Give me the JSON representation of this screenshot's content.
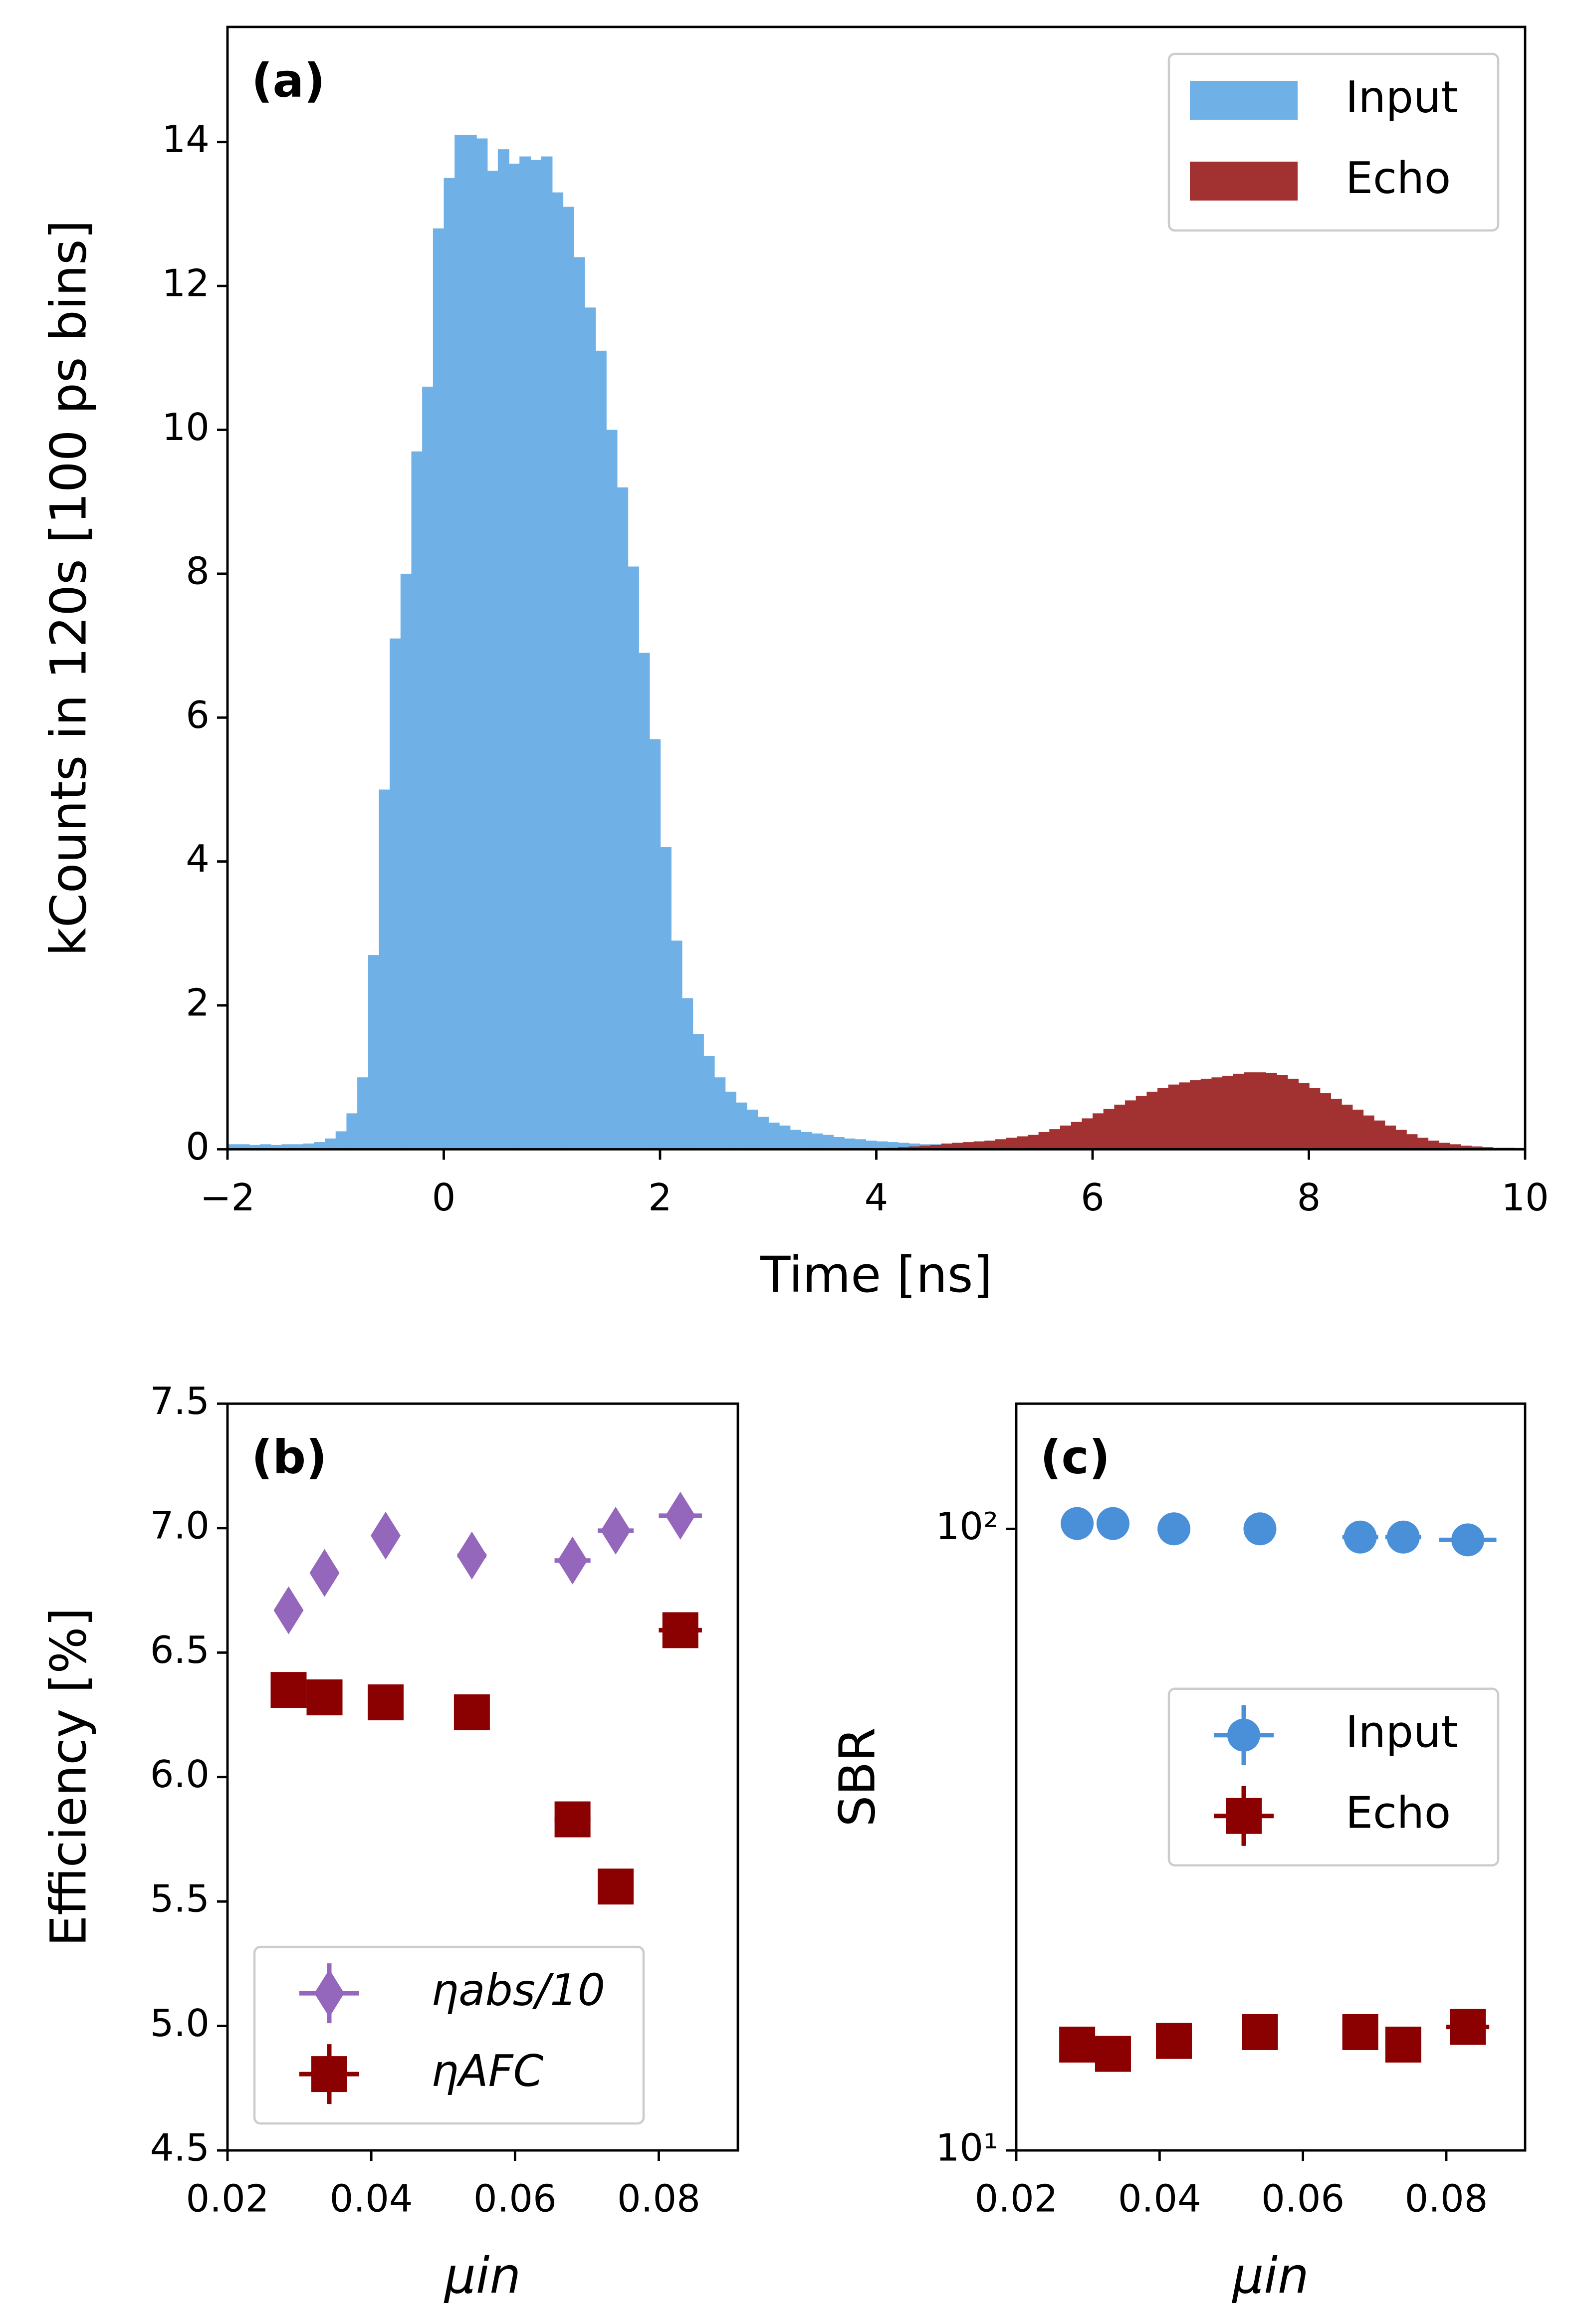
{
  "chart_data": [
    {
      "type": "histogram",
      "title": "(a)",
      "xlabel": "Time [ns]",
      "ylabel": "kCounts in 120s [100 ps bins]",
      "bins": [
        -2,
        -1.9,
        -1.8,
        -1.7,
        -1.6,
        -1.5,
        -1.4,
        -1.3,
        -1.2,
        -1.1,
        -1,
        -0.9,
        -0.8,
        -0.7,
        -0.6,
        -0.5,
        -0.4,
        -0.3,
        -0.2,
        -0.1,
        0,
        0.1,
        0.2,
        0.3,
        0.4,
        0.5,
        0.6,
        0.7,
        0.8,
        0.9,
        1,
        1.1,
        1.2,
        1.3,
        1.4,
        1.5,
        1.6,
        1.7,
        1.8,
        1.9,
        2,
        2.1,
        2.2,
        2.3,
        2.4,
        2.5,
        2.6,
        2.7,
        2.8,
        2.9,
        3,
        3.1,
        3.2,
        3.3,
        3.4,
        3.5,
        3.6,
        3.7,
        3.8,
        3.9,
        4,
        4.1,
        4.2,
        4.3,
        4.4,
        4.5,
        4.6,
        4.7,
        4.8,
        4.9,
        5,
        5.1,
        5.2,
        5.3,
        5.4,
        5.5,
        5.6,
        5.7,
        5.8,
        5.9,
        6,
        6.1,
        6.2,
        6.3,
        6.4,
        6.5,
        6.6,
        6.7,
        6.8,
        6.9,
        7,
        7.1,
        7.2,
        7.3,
        7.4,
        7.5,
        7.6,
        7.7,
        7.8,
        7.9,
        8,
        8.1,
        8.2,
        8.3,
        8.4,
        8.5,
        8.6,
        8.7,
        8.8,
        8.9,
        9,
        9.1,
        9.2,
        9.3,
        9.4,
        9.5,
        9.6,
        9.7,
        9.8,
        9.9,
        10
      ],
      "series": [
        {
          "name": "Input",
          "color": "#6fb0e6",
          "values": [
            0.07,
            0.07,
            0.06,
            0.07,
            0.06,
            0.07,
            0.07,
            0.08,
            0.1,
            0.15,
            0.25,
            0.5,
            1.0,
            2.7,
            5.0,
            7.1,
            8.0,
            9.7,
            10.6,
            12.8,
            13.5,
            14.1,
            14.1,
            14.05,
            13.6,
            13.9,
            13.7,
            13.8,
            13.75,
            13.8,
            13.3,
            13.1,
            12.4,
            11.7,
            11.1,
            10.0,
            9.2,
            8.1,
            6.9,
            5.7,
            4.2,
            2.9,
            2.1,
            1.6,
            1.3,
            1.0,
            0.8,
            0.65,
            0.55,
            0.45,
            0.37,
            0.33,
            0.27,
            0.24,
            0.22,
            0.2,
            0.17,
            0.15,
            0.14,
            0.12,
            0.11,
            0.1,
            0.09,
            0.08,
            0.07,
            0.07,
            0.06,
            0.05,
            0.05,
            0.04,
            0.03,
            0.03,
            0.03,
            0.03,
            0.03,
            0.03,
            0.03,
            0.03,
            0.03,
            0.03,
            0.02,
            0.02,
            0.02,
            0.02,
            0.02,
            0.02,
            0.02,
            0.02,
            0.02,
            0.02,
            0.02,
            0.02,
            0.02,
            0.02,
            0.02,
            0.02,
            0.02,
            0.02,
            0.02,
            0.02,
            0.02,
            0.02,
            0.02,
            0.02,
            0.02,
            0.02,
            0.02,
            0.02,
            0.02,
            0.02,
            0.02,
            0.02,
            0.02,
            0.02,
            0.02,
            0.02,
            0.02,
            0.02,
            0.02,
            0.02
          ]
        },
        {
          "name": "Echo",
          "color": "#a23232",
          "values": [
            0,
            0,
            0,
            0,
            0,
            0,
            0,
            0,
            0,
            0,
            0,
            0,
            0,
            0,
            0,
            0,
            0,
            0,
            0,
            0,
            0,
            0,
            0,
            0,
            0,
            0,
            0,
            0,
            0,
            0,
            0,
            0,
            0,
            0,
            0,
            0,
            0,
            0,
            0,
            0,
            0,
            0,
            0,
            0,
            0,
            0,
            0,
            0,
            0,
            0,
            0,
            0,
            0,
            0,
            0,
            0,
            0,
            0,
            0,
            0,
            0.01,
            0.02,
            0.03,
            0.04,
            0.05,
            0.06,
            0.08,
            0.09,
            0.1,
            0.11,
            0.12,
            0.14,
            0.16,
            0.18,
            0.2,
            0.24,
            0.28,
            0.33,
            0.38,
            0.43,
            0.5,
            0.56,
            0.62,
            0.68,
            0.74,
            0.8,
            0.85,
            0.9,
            0.93,
            0.96,
            0.98,
            1.0,
            1.02,
            1.05,
            1.07,
            1.07,
            1.06,
            1.03,
            0.98,
            0.92,
            0.85,
            0.78,
            0.7,
            0.62,
            0.55,
            0.47,
            0.4,
            0.33,
            0.27,
            0.21,
            0.16,
            0.12,
            0.09,
            0.07,
            0.05,
            0.04,
            0.03,
            0.02,
            0.02,
            0.01
          ]
        }
      ],
      "xlim": [
        -2,
        10
      ],
      "xticks": [
        {
          "value": -2,
          "label": "−2"
        },
        0,
        2,
        4,
        6,
        8,
        10
      ],
      "ylim": [
        0,
        15.6
      ],
      "yticks": [
        0,
        2,
        4,
        6,
        8,
        10,
        12,
        14
      ],
      "legend": "upper right"
    },
    {
      "type": "scatter",
      "title": "(b)",
      "xlabel": "μin",
      "ylabel": "Efficiency [%]",
      "x": [
        0.0285,
        0.0335,
        0.042,
        0.054,
        0.068,
        0.074,
        0.083
      ],
      "series": [
        {
          "name": "ηabs/10",
          "color": "#9467bd",
          "marker": "diamond",
          "values": [
            6.67,
            6.82,
            6.97,
            6.89,
            6.87,
            6.99,
            7.05
          ],
          "xerr": [
            0.001,
            0.0012,
            0.0015,
            0.002,
            0.0025,
            0.0025,
            0.003
          ],
          "yerr": [
            0.03,
            0.03,
            0.03,
            0.03,
            0.03,
            0.03,
            0.03
          ]
        },
        {
          "name": "ηAFC",
          "color": "#8b0000",
          "marker": "square",
          "values": [
            6.35,
            6.32,
            6.3,
            6.26,
            5.83,
            5.56,
            6.59
          ],
          "xerr": [
            0.0015,
            0.0015,
            0.0015,
            0.002,
            0.0025,
            0.0025,
            0.003
          ],
          "yerr": [
            0.04,
            0.04,
            0.04,
            0.04,
            0.04,
            0.04,
            0.04
          ]
        }
      ],
      "xlim": [
        0.02,
        0.091
      ],
      "xticks": [
        0.02,
        0.04,
        0.06,
        0.08
      ],
      "ylim": [
        4.5,
        7.5
      ],
      "yticks": [
        4.5,
        {
          "value": 5,
          "label": "5.0"
        },
        5.5,
        {
          "value": 6,
          "label": "6.0"
        },
        6.5,
        {
          "value": 7,
          "label": "7.0"
        },
        7.5
      ],
      "legend": "lower left"
    },
    {
      "type": "scatter",
      "title": "(c)",
      "xlabel": "μin",
      "ylabel": "SBR",
      "yscale": "log",
      "x": [
        0.0285,
        0.0335,
        0.042,
        0.054,
        0.068,
        0.074,
        0.083
      ],
      "series": [
        {
          "name": "Input",
          "color": "#4a90d9",
          "marker": "circle",
          "values": [
            102,
            102,
            100,
            100,
            97,
            97,
            96
          ],
          "xerr": [
            0.001,
            0.0012,
            0.0015,
            0.002,
            0.0025,
            0.0025,
            0.004
          ],
          "yerr": [
            1,
            1,
            1,
            1,
            1,
            1,
            1
          ]
        },
        {
          "name": "Echo",
          "color": "#8b0000",
          "marker": "square",
          "values": [
            14.8,
            14.3,
            15.0,
            15.5,
            15.5,
            14.8,
            15.8
          ],
          "xerr": [
            0.0015,
            0.0015,
            0.0015,
            0.002,
            0.0025,
            0.0025,
            0.003
          ],
          "yerr": [
            0.5,
            0.5,
            0.5,
            0.5,
            0.5,
            0.5,
            0.5
          ]
        }
      ],
      "xlim": [
        0.02,
        0.091
      ],
      "xticks": [
        0.02,
        0.04,
        0.06,
        0.08
      ],
      "ylim": [
        10,
        159
      ],
      "yticks": [
        {
          "value": 10,
          "label": "10¹"
        },
        {
          "value": 100,
          "label": "10²"
        }
      ],
      "legend": "center right"
    }
  ]
}
